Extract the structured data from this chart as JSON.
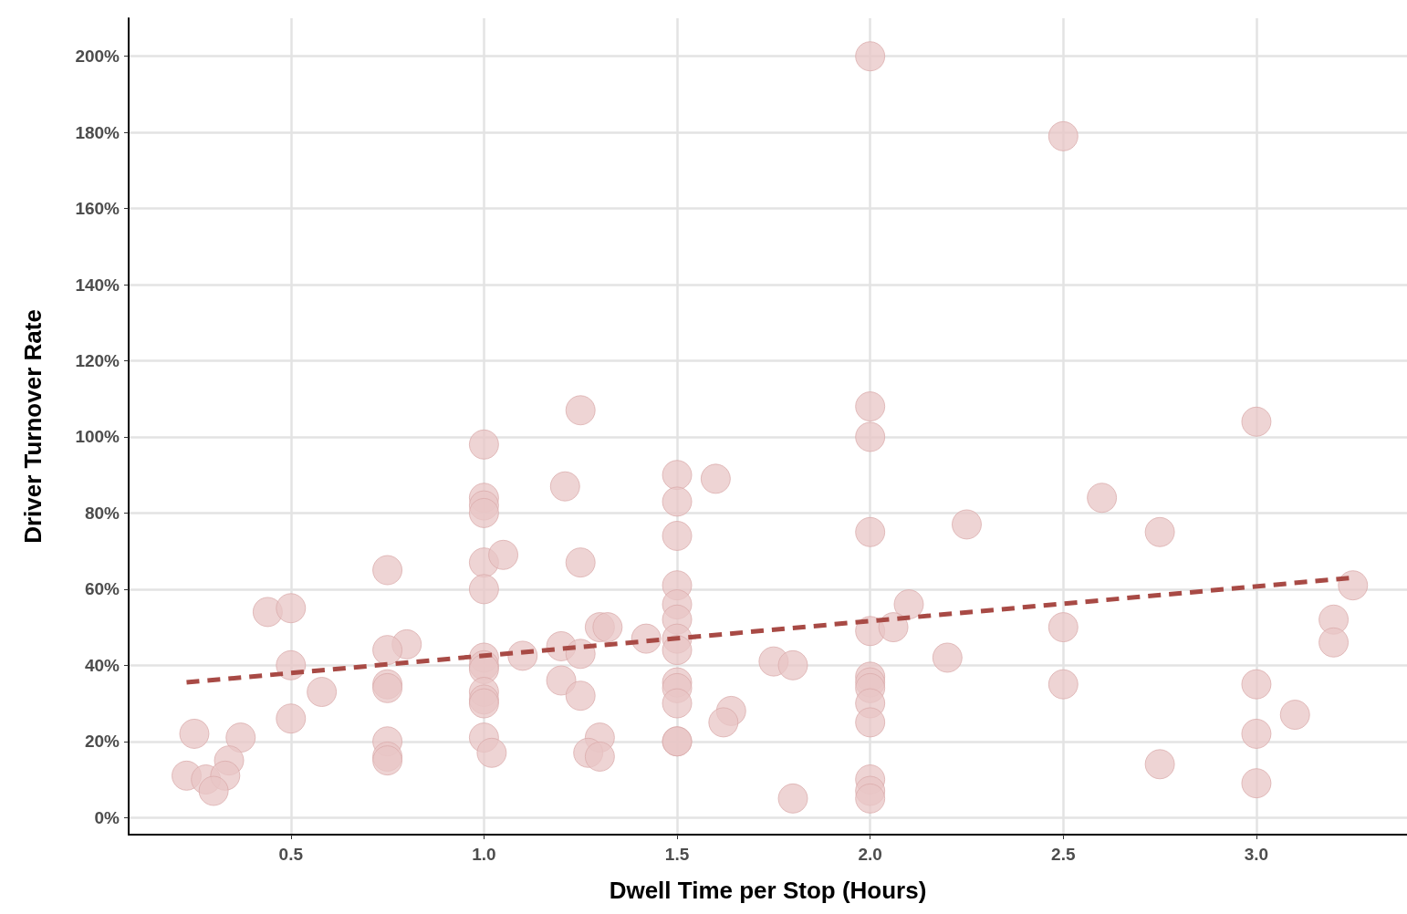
{
  "chart_data": {
    "type": "scatter",
    "xlabel": "Dwell Time per Stop (Hours)",
    "ylabel": "Driver Turnover Rate",
    "xlim": [
      0.08,
      3.39
    ],
    "ylim": [
      -4.5,
      210
    ],
    "xticks": [
      {
        "value": 0.5,
        "label": "0.5"
      },
      {
        "value": 1,
        "label": "1.0"
      },
      {
        "value": 1.5,
        "label": "1.5"
      },
      {
        "value": 2,
        "label": "2.0"
      },
      {
        "value": 2.5,
        "label": "2.5"
      },
      {
        "value": 3,
        "label": "3.0"
      }
    ],
    "yticks": [
      {
        "value": 0,
        "label": "0%"
      },
      {
        "value": 20,
        "label": "20%"
      },
      {
        "value": 40,
        "label": "40%"
      },
      {
        "value": 60,
        "label": "60%"
      },
      {
        "value": 80,
        "label": "80%"
      },
      {
        "value": 100,
        "label": "100%"
      },
      {
        "value": 120,
        "label": "120%"
      },
      {
        "value": 140,
        "label": "140%"
      },
      {
        "value": 160,
        "label": "160%"
      },
      {
        "value": 180,
        "label": "180%"
      },
      {
        "value": 200,
        "label": "200%"
      }
    ],
    "grid": true,
    "marker": "circle",
    "series": [
      {
        "color": "#e8c6c6",
        "x": [
          2,
          2.5,
          2,
          2,
          1.25,
          1,
          3,
          1.5,
          1.6,
          1.21,
          1,
          1,
          1,
          1.5,
          2.6,
          2.25,
          2,
          2.75,
          1.5,
          0.75,
          1,
          1.05,
          1.25,
          1,
          1.5,
          3.25,
          0.44,
          0.5,
          1.5,
          2.1,
          1.5,
          3.2,
          1.3,
          1.32,
          2,
          2.06,
          2.5,
          1.42,
          1.5,
          3.2,
          0.8,
          0.75,
          1.2,
          1.5,
          1.25,
          1.1,
          1,
          1,
          1,
          0.5,
          1.75,
          1.8,
          2.2,
          2,
          1.2,
          1.5,
          2,
          2,
          0.75,
          0.75,
          2.5,
          3,
          1.5,
          0.58,
          1,
          1.25,
          1,
          1,
          1.5,
          2,
          3.1,
          0.5,
          1.64,
          1.62,
          2,
          0.25,
          0.37,
          1,
          1.3,
          1.5,
          1.5,
          0.75,
          3,
          0.75,
          0.75,
          1.02,
          1.27,
          1.3,
          0.34,
          2.75,
          0.23,
          0.28,
          0.33,
          0.3,
          2,
          2,
          2,
          1.8,
          3
        ],
        "values": [
          200,
          179,
          108,
          100,
          107,
          98,
          104,
          90,
          89,
          87,
          84,
          82,
          80,
          83,
          84,
          77,
          75,
          75,
          74,
          65,
          67,
          69,
          67,
          60,
          61,
          61,
          54,
          55,
          56,
          56,
          52,
          52,
          50,
          50,
          49,
          50,
          50,
          47,
          47,
          46,
          45.5,
          44,
          45,
          44,
          43,
          42.5,
          42,
          40,
          39,
          40,
          41,
          40,
          42,
          37,
          36,
          35.5,
          35.5,
          34,
          35,
          34,
          35,
          35,
          34,
          33,
          33,
          32,
          31,
          30,
          30,
          30,
          27,
          26,
          28,
          25,
          25,
          22,
          21,
          21,
          21,
          20,
          20,
          20,
          22,
          16,
          15,
          17,
          17,
          16,
          15,
          14,
          11,
          10,
          11,
          7,
          10,
          7,
          5,
          5,
          9
        ]
      },
      {
        "type": "line",
        "color": "#a84a45",
        "line_style": "dashed",
        "marker": "none",
        "x": [
          0.23,
          3.25
        ],
        "values": [
          35.5,
          63
        ]
      }
    ]
  }
}
